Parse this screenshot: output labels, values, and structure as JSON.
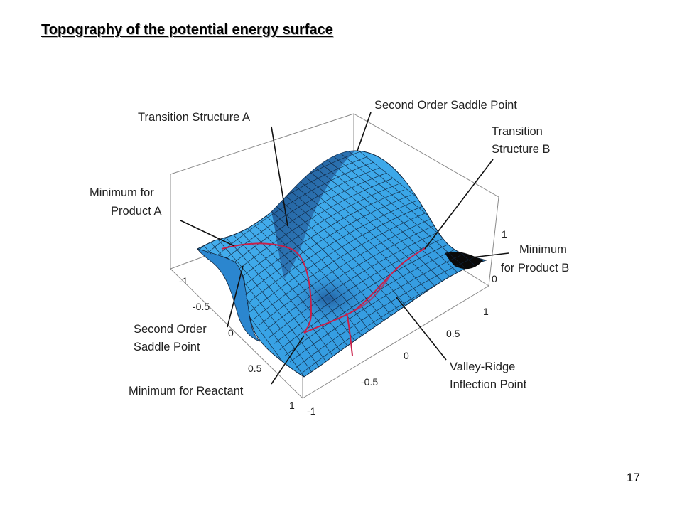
{
  "slide": {
    "title": "Topography of the potential energy surface",
    "page_number": "17"
  },
  "annotations": {
    "transition_structure_a": "Transition Structure A",
    "second_order_saddle_top": "Second Order Saddle Point",
    "transition_structure_b": [
      "Transition",
      "Structure B"
    ],
    "minimum_product_a": [
      "Minimum for",
      "Product A"
    ],
    "minimum_product_b": [
      "Minimum",
      "for Product B"
    ],
    "second_order_saddle_left": [
      "Second Order",
      "Saddle Point"
    ],
    "minimum_reactant": "Minimum for Reactant",
    "valley_ridge": [
      "Valley-Ridge",
      "Inflection Point"
    ]
  },
  "axes": {
    "left_ticks": [
      "-1",
      "-0.5",
      "0",
      "0.5",
      "1"
    ],
    "front_ticks": [
      "-1",
      "-0.5",
      "0",
      "0.5",
      "1"
    ],
    "right_ticks": [
      "1",
      "0"
    ]
  },
  "colors": {
    "surface": "#3aa6e8",
    "surface_dark": "#1c5fa8",
    "mesh": "#10243c",
    "path": "#c8204a"
  }
}
